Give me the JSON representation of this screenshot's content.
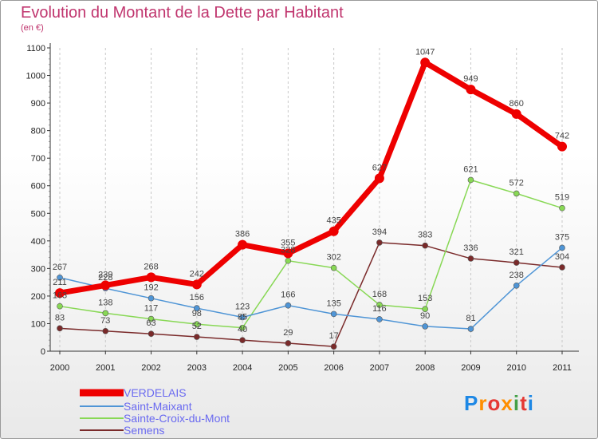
{
  "title": "Evolution du Montant de la Dette par Habitant",
  "subtitle": "(en €)",
  "logo": {
    "text": "Proxiti",
    "colors": [
      "#1e88e5",
      "#ff8f00",
      "#e53935",
      "#ff8f00",
      "#43a047",
      "#e53935",
      "#1e88e5"
    ]
  },
  "chart_data": {
    "type": "line",
    "x": [
      "2000",
      "2001",
      "2002",
      "2003",
      "2004",
      "2005",
      "2006",
      "2007",
      "2008",
      "2009",
      "2010",
      "2011"
    ],
    "ylim": [
      0,
      1100
    ],
    "yticks": [
      0,
      100,
      200,
      300,
      400,
      500,
      600,
      700,
      800,
      900,
      1000,
      1100
    ],
    "grid": "vertical dashed",
    "legend_position": "bottom-left",
    "series": [
      {
        "name": "VERDELAIS",
        "color": "#ee0000",
        "values": [
          211,
          239,
          268,
          242,
          386,
          355,
          435,
          627,
          1047,
          949,
          860,
          742
        ],
        "labels": [
          "211",
          "239",
          "268",
          "242",
          "386",
          "355",
          "435",
          "627",
          "1047",
          "949",
          "860",
          "742"
        ]
      },
      {
        "name": "Saint-Maixant",
        "color": "#4f95d6",
        "values": [
          267,
          228,
          192,
          156,
          123,
          166,
          135,
          116,
          90,
          81,
          238,
          375
        ],
        "labels": [
          "267",
          "228",
          "192",
          "156",
          "123",
          "166",
          "135",
          "116",
          "90",
          "81",
          "238",
          "375"
        ]
      },
      {
        "name": "Sainte-Croix-du-Mont",
        "color": "#88d855",
        "values": [
          163,
          138,
          117,
          98,
          85,
          328,
          302,
          168,
          153,
          621,
          572,
          519
        ],
        "labels": [
          "163",
          "138",
          "117",
          "98",
          "85",
          "328",
          "302",
          "168",
          "153",
          "621",
          "572",
          "519"
        ]
      },
      {
        "name": "Semens",
        "color": "#7a2a2a",
        "values": [
          83,
          73,
          63,
          52,
          40,
          29,
          17,
          394,
          383,
          336,
          321,
          304
        ],
        "labels": [
          "83",
          "73",
          "63",
          "52",
          "40",
          "29",
          "17",
          "394",
          "383",
          "336",
          "321",
          "304"
        ]
      }
    ]
  }
}
